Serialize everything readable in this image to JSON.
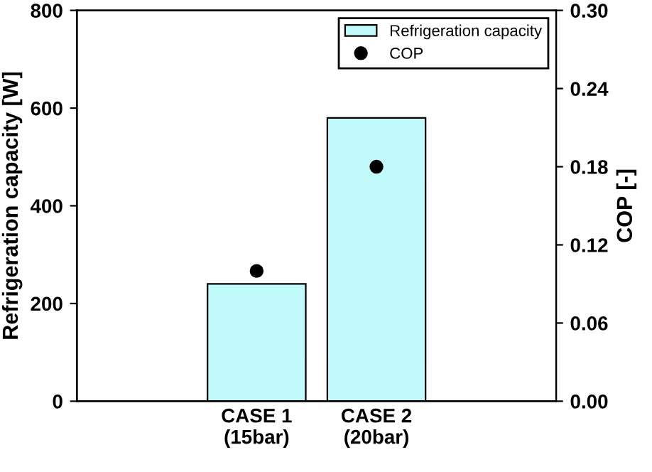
{
  "chart_data": {
    "type": "bar",
    "categories": [
      null,
      "CASE 1\n(15bar)",
      "CASE 2\n(20bar)",
      null
    ],
    "series": [
      {
        "name": "Refrigeration capacity",
        "color": "#c0fafa",
        "values": [
          null,
          240,
          580,
          null
        ]
      },
      {
        "name": "COP",
        "type": "scatter",
        "axis": "y2",
        "color": "#000000",
        "marker": "circle",
        "values": [
          null,
          0.1,
          0.18,
          null
        ]
      }
    ],
    "ylabel": "Refrigeration capacity [W]",
    "y2label": "COP [-]",
    "ylim": [
      0,
      800
    ],
    "yticks": [
      0,
      200,
      400,
      600,
      800
    ],
    "y2lim": [
      0,
      0.3
    ],
    "y2ticks": [
      {
        "value": 0,
        "label": "0.00"
      },
      {
        "value": 0.06,
        "label": "0.06"
      },
      {
        "value": 0.12,
        "label": "0.12"
      },
      {
        "value": 0.18,
        "label": "0.18"
      },
      {
        "value": 0.24,
        "label": "0.24"
      },
      {
        "value": 0.3,
        "label": "0.30"
      }
    ],
    "legend": "top right",
    "grid": false
  }
}
